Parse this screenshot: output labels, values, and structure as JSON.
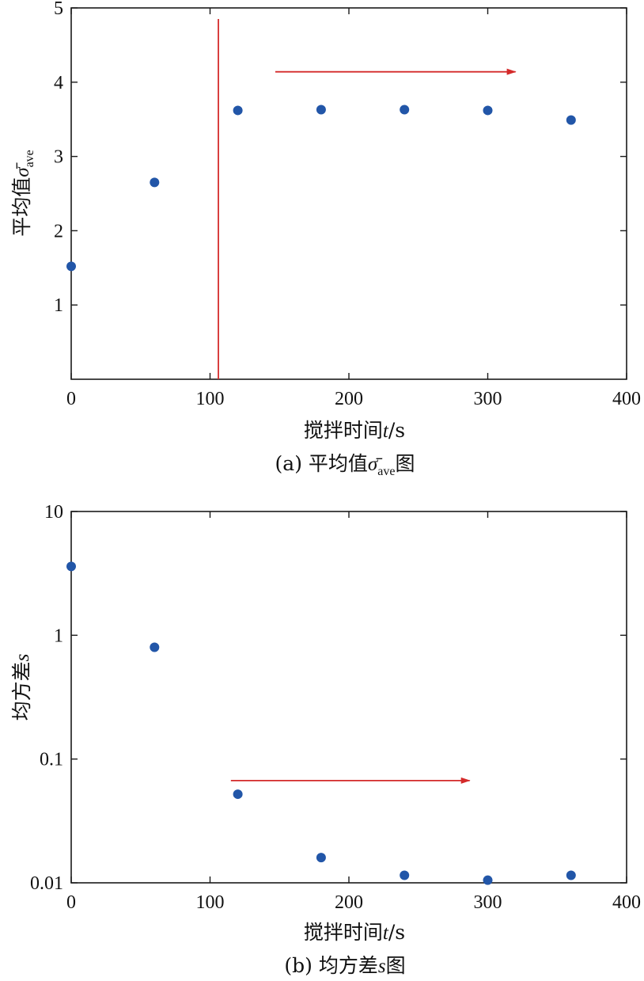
{
  "chart_data": [
    {
      "type": "scatter",
      "xlabel": "搅拌时间t/s",
      "ylabel": "平均值σave",
      "caption": "(a) 平均值σave图",
      "xlim": [
        0,
        400
      ],
      "ylim": [
        0,
        5
      ],
      "xticks": [
        0,
        100,
        200,
        300,
        400
      ],
      "yticks": [
        1,
        2,
        3,
        4,
        5
      ],
      "series": [
        {
          "x": [
            0,
            60,
            120,
            180,
            240,
            300,
            360
          ],
          "y": [
            1.52,
            2.65,
            3.62,
            3.63,
            3.63,
            3.62,
            3.49
          ]
        }
      ],
      "vline_x": 106,
      "arrow": {
        "x_start": 147,
        "x_end": 320,
        "y": 4.14
      },
      "colors": {
        "points": "#2256a8",
        "annotation": "#d42a2a"
      }
    },
    {
      "type": "scatter",
      "y_scale": "log",
      "xlabel": "搅拌时间t/s",
      "ylabel": "均方差s",
      "caption": "(b) 均方差s图",
      "xlim": [
        0,
        400
      ],
      "ylim": [
        0.01,
        10
      ],
      "xticks": [
        0,
        100,
        200,
        300,
        400
      ],
      "yticks": [
        0.01,
        0.1,
        1,
        10
      ],
      "series": [
        {
          "x": [
            0,
            60,
            120,
            180,
            240,
            300,
            360
          ],
          "y": [
            3.6,
            0.8,
            0.052,
            0.016,
            0.0115,
            0.0105,
            0.0115
          ]
        }
      ],
      "arrow": {
        "x_start": 115,
        "x_end": 287,
        "y": 0.067
      },
      "colors": {
        "points": "#2256a8",
        "annotation": "#d42a2a"
      }
    }
  ]
}
